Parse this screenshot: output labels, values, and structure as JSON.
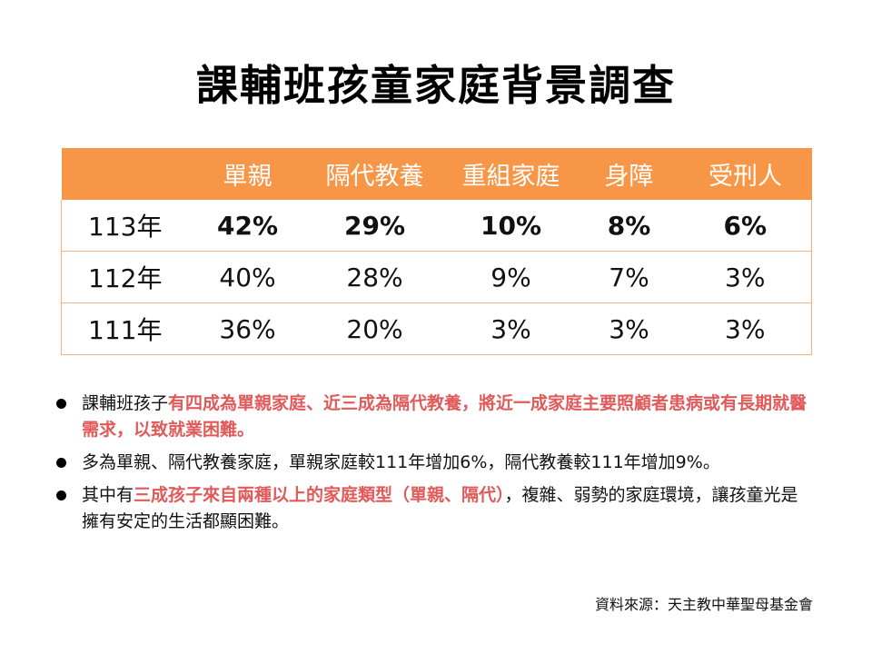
{
  "title": "課輔班孩童家庭背景調查",
  "table": {
    "headers": [
      "",
      "單親",
      "隔代教養",
      "重組家庭",
      "身障",
      "受刑人"
    ],
    "rows": [
      {
        "label": "113年",
        "values": [
          "42%",
          "29%",
          "10%",
          "8%",
          "6%"
        ]
      },
      {
        "label": "112年",
        "values": [
          "40%",
          "28%",
          "9%",
          "7%",
          "3%"
        ]
      },
      {
        "label": "111年",
        "values": [
          "36%",
          "20%",
          "3%",
          "3%",
          "3%"
        ]
      }
    ],
    "header_color": "#f79646",
    "highlight_color": "#e05a5a"
  },
  "bullets": [
    {
      "pre": "課輔班孩子",
      "highlight": "有四成為單親家庭、近三成為隔代教養，將近一成家庭主要照顧者患病或有長期就醫需求，以致就業困難。",
      "post": ""
    },
    {
      "pre": "多為單親、隔代教養家庭，單親家庭較111年增加6%，隔代教養較111年增加9%。",
      "highlight": "",
      "post": ""
    },
    {
      "pre": "其中有",
      "highlight": "三成孩子來自兩種以上的家庭類型（單親、隔代）",
      "post": "，複雜、弱勢的家庭環境，讓孩童光是擁有安定的生活都顯困難。"
    }
  ],
  "source": "資料來源：天主教中華聖母基金會"
}
